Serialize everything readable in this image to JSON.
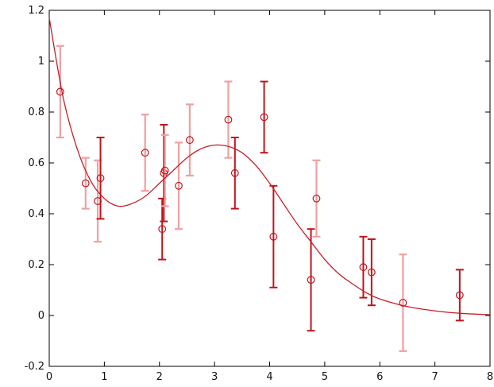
{
  "chart_data": {
    "type": "scatter",
    "title": "",
    "xlabel": "",
    "ylabel": "",
    "xlim": [
      0,
      8
    ],
    "ylim": [
      -0.2,
      1.2
    ],
    "grid": false,
    "legend": "none",
    "x_ticks": [
      {
        "value": 0,
        "label": "0"
      },
      {
        "value": 1,
        "label": "1"
      },
      {
        "value": 2,
        "label": "2"
      },
      {
        "value": 3,
        "label": "3"
      },
      {
        "value": 4,
        "label": "4"
      },
      {
        "value": 5,
        "label": "5"
      },
      {
        "value": 6,
        "label": "6"
      },
      {
        "value": 7,
        "label": "7"
      },
      {
        "value": 8,
        "label": "8"
      }
    ],
    "y_ticks": [
      {
        "value": -0.2,
        "label": "-0.2"
      },
      {
        "value": 0,
        "label": "0"
      },
      {
        "value": 0.2,
        "label": "0.2"
      },
      {
        "value": 0.4,
        "label": "0.4"
      },
      {
        "value": 0.6,
        "label": "0.6"
      },
      {
        "value": 0.8,
        "label": "0.8"
      },
      {
        "value": 1,
        "label": "1"
      },
      {
        "value": 1.2,
        "label": "1.2"
      }
    ],
    "colors": {
      "dark": "#c0141c",
      "light": "#f0a0a0",
      "curve": "#c81e28",
      "axis": "#000000"
    },
    "series": [
      {
        "type": "errorbar",
        "points": [
          {
            "x": 0.2,
            "y": 0.88,
            "err": 0.18,
            "shade": "light"
          },
          {
            "x": 0.66,
            "y": 0.52,
            "err": 0.1,
            "shade": "light"
          },
          {
            "x": 0.88,
            "y": 0.45,
            "err": 0.16,
            "shade": "light"
          },
          {
            "x": 0.93,
            "y": 0.54,
            "err": 0.16,
            "shade": "dark"
          },
          {
            "x": 1.74,
            "y": 0.64,
            "err": 0.15,
            "shade": "light"
          },
          {
            "x": 2.05,
            "y": 0.34,
            "err": 0.12,
            "shade": "dark"
          },
          {
            "x": 2.08,
            "y": 0.56,
            "err": 0.19,
            "shade": "dark"
          },
          {
            "x": 2.1,
            "y": 0.57,
            "err": 0.14,
            "shade": "light"
          },
          {
            "x": 2.35,
            "y": 0.51,
            "err": 0.17,
            "shade": "light"
          },
          {
            "x": 2.55,
            "y": 0.69,
            "err": 0.14,
            "shade": "light"
          },
          {
            "x": 3.25,
            "y": 0.77,
            "err": 0.15,
            "shade": "light"
          },
          {
            "x": 3.37,
            "y": 0.56,
            "err": 0.14,
            "shade": "dark"
          },
          {
            "x": 3.9,
            "y": 0.78,
            "err": 0.14,
            "shade": "dark"
          },
          {
            "x": 4.07,
            "y": 0.31,
            "err": 0.2,
            "shade": "dark"
          },
          {
            "x": 4.75,
            "y": 0.14,
            "err": 0.2,
            "shade": "dark"
          },
          {
            "x": 4.85,
            "y": 0.46,
            "err": 0.15,
            "shade": "light"
          },
          {
            "x": 5.7,
            "y": 0.19,
            "err": 0.12,
            "shade": "dark"
          },
          {
            "x": 5.85,
            "y": 0.17,
            "err": 0.13,
            "shade": "dark"
          },
          {
            "x": 6.42,
            "y": 0.05,
            "err": 0.19,
            "shade": "light"
          },
          {
            "x": 7.45,
            "y": 0.08,
            "err": 0.1,
            "shade": "dark"
          }
        ]
      },
      {
        "type": "line",
        "points": [
          {
            "x": 0,
            "y": 1.17
          },
          {
            "x": 0.25,
            "y": 0.86
          },
          {
            "x": 0.5,
            "y": 0.66
          },
          {
            "x": 0.75,
            "y": 0.53
          },
          {
            "x": 1.0,
            "y": 0.46
          },
          {
            "x": 1.25,
            "y": 0.43
          },
          {
            "x": 1.5,
            "y": 0.44
          },
          {
            "x": 1.75,
            "y": 0.47
          },
          {
            "x": 2.0,
            "y": 0.52
          },
          {
            "x": 2.25,
            "y": 0.57
          },
          {
            "x": 2.5,
            "y": 0.62
          },
          {
            "x": 2.75,
            "y": 0.655
          },
          {
            "x": 3.0,
            "y": 0.67
          },
          {
            "x": 3.25,
            "y": 0.665
          },
          {
            "x": 3.5,
            "y": 0.64
          },
          {
            "x": 3.75,
            "y": 0.59
          },
          {
            "x": 4.0,
            "y": 0.52
          },
          {
            "x": 4.25,
            "y": 0.44
          },
          {
            "x": 4.5,
            "y": 0.36
          },
          {
            "x": 4.75,
            "y": 0.29
          },
          {
            "x": 5.0,
            "y": 0.22
          },
          {
            "x": 5.25,
            "y": 0.165
          },
          {
            "x": 5.5,
            "y": 0.125
          },
          {
            "x": 5.75,
            "y": 0.09
          },
          {
            "x": 6.0,
            "y": 0.065
          },
          {
            "x": 6.5,
            "y": 0.035
          },
          {
            "x": 7.0,
            "y": 0.018
          },
          {
            "x": 7.5,
            "y": 0.008
          },
          {
            "x": 8.0,
            "y": 0.003
          }
        ]
      }
    ]
  }
}
